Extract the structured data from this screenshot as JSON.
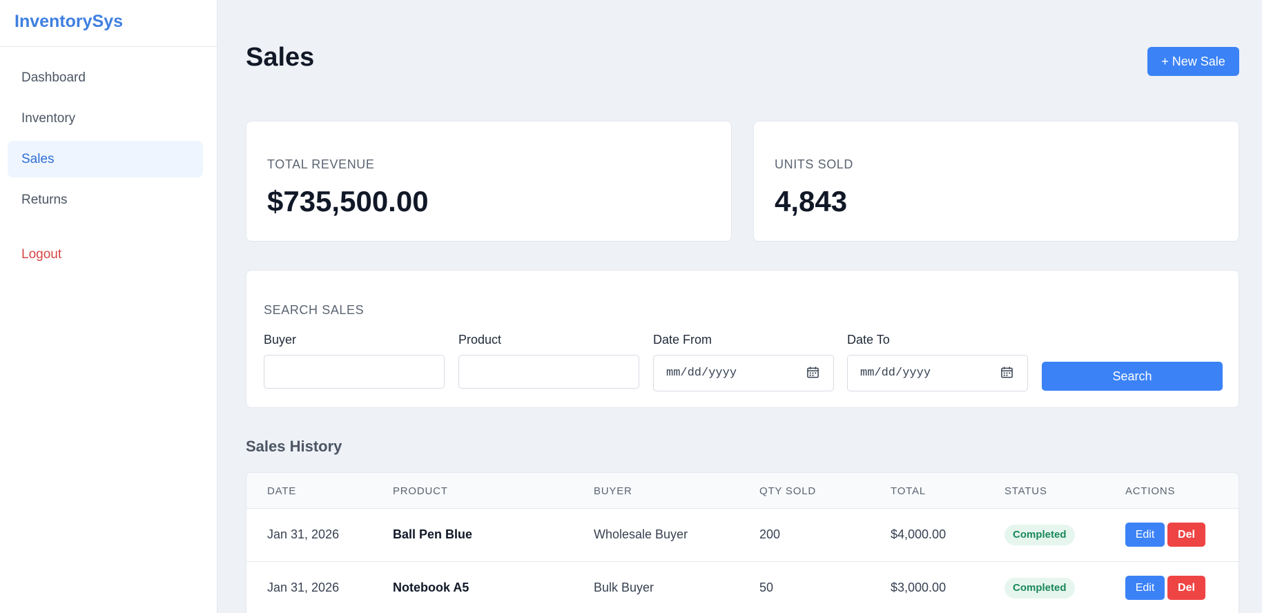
{
  "sidebar": {
    "brand": "InventorySys",
    "items": [
      {
        "label": "Dashboard"
      },
      {
        "label": "Inventory"
      },
      {
        "label": "Sales",
        "active": true
      },
      {
        "label": "Returns"
      }
    ],
    "logout": "Logout"
  },
  "header": {
    "title": "Sales",
    "new_button": "+ New Sale"
  },
  "stats": {
    "revenue_label": "TOTAL REVENUE",
    "revenue_value": "$735,500.00",
    "units_label": "UNITS SOLD",
    "units_value": "4,843"
  },
  "search": {
    "title": "SEARCH SALES",
    "buyer_label": "Buyer",
    "buyer_value": "",
    "product_label": "Product",
    "product_value": "",
    "date_from_label": "Date From",
    "date_from_placeholder": "mm/dd/yyyy",
    "date_to_label": "Date To",
    "date_to_placeholder": "mm/dd/yyyy",
    "button": "Search"
  },
  "history": {
    "title": "Sales History",
    "columns": [
      "DATE",
      "PRODUCT",
      "BUYER",
      "QTY SOLD",
      "TOTAL",
      "STATUS",
      "ACTIONS"
    ],
    "rows": [
      {
        "date": "Jan 31, 2026",
        "product": "Ball Pen Blue",
        "buyer": "Wholesale Buyer",
        "qty": "200",
        "total": "$4,000.00",
        "status": "Completed",
        "edit": "Edit",
        "del": "Del"
      },
      {
        "date": "Jan 31, 2026",
        "product": "Notebook A5",
        "buyer": "Bulk Buyer",
        "qty": "50",
        "total": "$3,000.00",
        "status": "Completed",
        "edit": "Edit",
        "del": "Del"
      }
    ]
  },
  "colors": {
    "accent": "#3b82f6",
    "danger": "#ef4444",
    "success": "#19875a",
    "brand": "#3f7fe0"
  }
}
